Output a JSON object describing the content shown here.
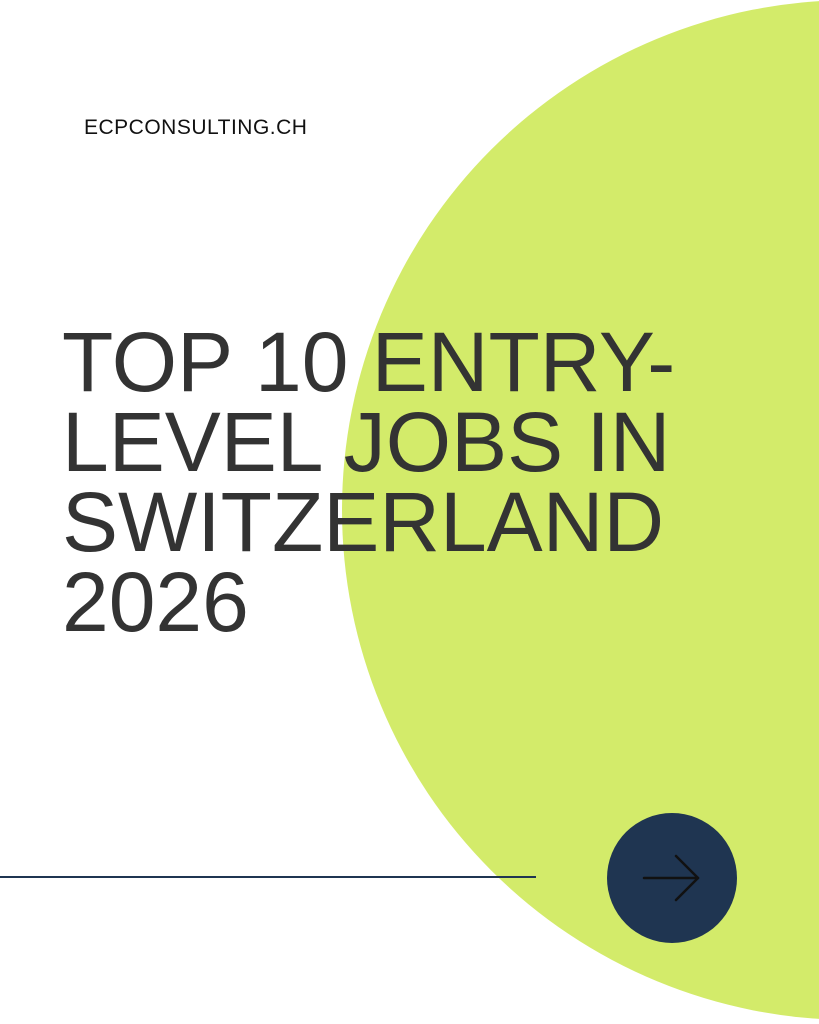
{
  "brand": {
    "text": "ECPCONSULTING.CH"
  },
  "headline": {
    "lines": [
      "TOP 10 ENTRY-",
      "LEVEL JOBS IN",
      "SWITZERLAND",
      "2026"
    ]
  },
  "next_button": {
    "icon": "arrow-right-icon"
  },
  "colors": {
    "background": "#ffffff",
    "accent_circle": "#d3eb6a",
    "headline_text": "#333333",
    "brand_text": "#111111",
    "button_fill": "#1f3551",
    "button_icon": "#111111",
    "rule_line": "#1f3551"
  }
}
